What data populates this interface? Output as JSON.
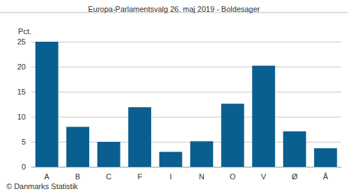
{
  "chart_data": {
    "type": "bar",
    "title": "Europa-Parlamentsvalg 26. maj 2019 - Boldesager",
    "y_label": "Pct.",
    "source": "© Danmarks Statistik",
    "categories": [
      "A",
      "B",
      "C",
      "F",
      "I",
      "N",
      "O",
      "V",
      "Ø",
      "Å"
    ],
    "values": [
      25.0,
      8.0,
      5.0,
      11.9,
      3.0,
      5.1,
      12.6,
      20.2,
      7.1,
      3.7
    ],
    "color": "#0a5f91",
    "ylim": [
      0,
      25
    ],
    "yticks": [
      0,
      5,
      10,
      15,
      20,
      25
    ],
    "grid": true
  }
}
